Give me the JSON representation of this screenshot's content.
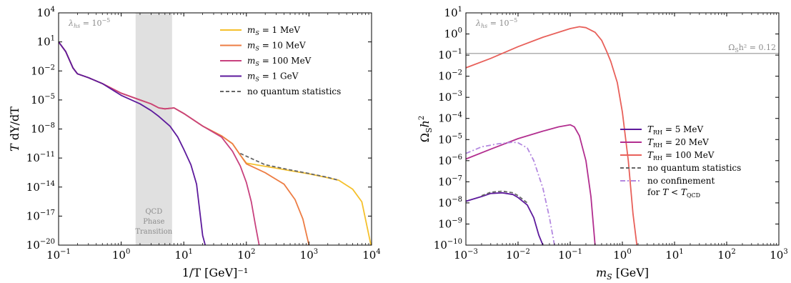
{
  "chart_data": [
    {
      "type": "line",
      "xscale": "log",
      "yscale": "log",
      "xlim": [
        0.1,
        10000
      ],
      "ylim": [
        1e-20,
        10000
      ],
      "xticks": [
        {
          "v": 0.1,
          "base": "10",
          "exp": "−1"
        },
        {
          "v": 1,
          "base": "10",
          "exp": "0"
        },
        {
          "v": 10,
          "base": "10",
          "exp": "1"
        },
        {
          "v": 100,
          "base": "10",
          "exp": "2"
        },
        {
          "v": 1000,
          "base": "10",
          "exp": "3"
        },
        {
          "v": 10000,
          "base": "10",
          "exp": "4"
        }
      ],
      "yticks": [
        {
          "v": 1e-20,
          "base": "10",
          "exp": "−20"
        },
        {
          "v": 1e-17,
          "base": "10",
          "exp": "−17"
        },
        {
          "v": 1e-14,
          "base": "10",
          "exp": "−14"
        },
        {
          "v": 1e-11,
          "base": "10",
          "exp": "−11"
        },
        {
          "v": 1e-08,
          "base": "10",
          "exp": "−8"
        },
        {
          "v": 1e-05,
          "base": "10",
          "exp": "−5"
        },
        {
          "v": 0.01,
          "base": "10",
          "exp": "−2"
        },
        {
          "v": 10,
          "base": "10",
          "exp": "1"
        },
        {
          "v": 10000,
          "base": "10",
          "exp": "4"
        }
      ],
      "xlabel": "1/T [GeV]⁻¹",
      "ylabel": "T dY/dT",
      "annotation": "λhs = 10⁻⁵",
      "band": {
        "x0": 1.7,
        "x1": 6.5,
        "lines": [
          "QCD",
          "Phase",
          "Transition"
        ]
      },
      "legend": "top-right",
      "series": [
        {
          "name": "mS = 1 MeV",
          "color": "#f5c02c",
          "dash": "",
          "points": [
            [
              0.1,
              10
            ],
            [
              0.13,
              1
            ],
            [
              0.17,
              0.02
            ],
            [
              0.2,
              0.005
            ],
            [
              0.3,
              0.002
            ],
            [
              0.5,
              0.0005
            ],
            [
              1,
              5e-05
            ],
            [
              2,
              1e-05
            ],
            [
              3,
              4e-06
            ],
            [
              4,
              1.5e-06
            ],
            [
              5,
              1.2e-06
            ],
            [
              7,
              1.5e-06
            ],
            [
              10,
              4e-07
            ],
            [
              20,
              2e-08
            ],
            [
              40,
              2e-09
            ],
            [
              60,
              3e-10
            ],
            [
              80,
              2e-11
            ],
            [
              100,
              3e-12
            ],
            [
              200,
              1.4e-12
            ],
            [
              500,
              5e-13
            ],
            [
              1000,
              2.3e-13
            ],
            [
              2000,
              9e-14
            ],
            [
              3000,
              5e-14
            ],
            [
              5000,
              6e-15
            ],
            [
              7000,
              3e-16
            ],
            [
              10000,
              5e-21
            ]
          ]
        },
        {
          "name": "mS = 10 MeV",
          "color": "#ed7d44",
          "dash": "",
          "points": [
            [
              0.1,
              10
            ],
            [
              0.13,
              1
            ],
            [
              0.17,
              0.02
            ],
            [
              0.2,
              0.005
            ],
            [
              0.3,
              0.002
            ],
            [
              0.5,
              0.0005
            ],
            [
              1,
              5e-05
            ],
            [
              2,
              1e-05
            ],
            [
              3,
              4e-06
            ],
            [
              4,
              1.5e-06
            ],
            [
              5,
              1.2e-06
            ],
            [
              7,
              1.5e-06
            ],
            [
              10,
              4e-07
            ],
            [
              20,
              2e-08
            ],
            [
              40,
              2e-09
            ],
            [
              60,
              3e-10
            ],
            [
              80,
              2e-11
            ],
            [
              100,
              2.5e-12
            ],
            [
              200,
              3e-13
            ],
            [
              400,
              2e-14
            ],
            [
              600,
              5e-16
            ],
            [
              800,
              5e-18
            ],
            [
              1000,
              1e-20
            ]
          ]
        },
        {
          "name": "mS = 100 MeV",
          "color": "#c8417e",
          "dash": "",
          "points": [
            [
              0.1,
              10
            ],
            [
              0.13,
              1
            ],
            [
              0.17,
              0.02
            ],
            [
              0.2,
              0.005
            ],
            [
              0.3,
              0.002
            ],
            [
              0.5,
              0.0005
            ],
            [
              1,
              5e-05
            ],
            [
              2,
              1e-05
            ],
            [
              3,
              4e-06
            ],
            [
              4,
              1.5e-06
            ],
            [
              5,
              1.2e-06
            ],
            [
              7,
              1.5e-06
            ],
            [
              10,
              4e-07
            ],
            [
              20,
              2e-08
            ],
            [
              40,
              1.5e-09
            ],
            [
              60,
              5e-11
            ],
            [
              80,
              1.5e-12
            ],
            [
              100,
              3e-14
            ],
            [
              120,
              3e-16
            ],
            [
              140,
              1e-18
            ],
            [
              160,
              1e-20
            ]
          ]
        },
        {
          "name": "mS = 1 GeV",
          "color": "#5d1a9c",
          "dash": "",
          "points": [
            [
              0.1,
              10
            ],
            [
              0.13,
              1
            ],
            [
              0.17,
              0.02
            ],
            [
              0.2,
              0.005
            ],
            [
              0.3,
              0.002
            ],
            [
              0.5,
              0.0005
            ],
            [
              1,
              3e-05
            ],
            [
              2,
              4e-06
            ],
            [
              3,
              8e-07
            ],
            [
              4,
              2e-07
            ],
            [
              6,
              2e-08
            ],
            [
              8,
              1.5e-09
            ],
            [
              10,
              8e-11
            ],
            [
              13,
              2e-12
            ],
            [
              16,
              2e-14
            ],
            [
              20,
              1e-19
            ],
            [
              22,
              1e-20
            ]
          ]
        },
        {
          "name": "no quantum statistics",
          "color": "#666666",
          "dash": "5,3",
          "points": [
            [
              80,
              3e-11
            ],
            [
              200,
              2e-12
            ],
            [
              500,
              6e-13
            ],
            [
              1000,
              2.5e-13
            ],
            [
              2000,
              1e-13
            ],
            [
              3000,
              5e-14
            ]
          ]
        }
      ]
    },
    {
      "type": "line",
      "xscale": "log",
      "yscale": "log",
      "xlim": [
        0.001,
        1000
      ],
      "ylim": [
        1e-10,
        10
      ],
      "xticks": [
        {
          "v": 0.001,
          "base": "10",
          "exp": "−3"
        },
        {
          "v": 0.01,
          "base": "10",
          "exp": "−2"
        },
        {
          "v": 0.1,
          "base": "10",
          "exp": "−1"
        },
        {
          "v": 1,
          "base": "10",
          "exp": "0"
        },
        {
          "v": 10,
          "base": "10",
          "exp": "1"
        },
        {
          "v": 100,
          "base": "10",
          "exp": "2"
        },
        {
          "v": 1000,
          "base": "10",
          "exp": "3"
        }
      ],
      "yticks": [
        {
          "v": 1e-10,
          "base": "10",
          "exp": "−10"
        },
        {
          "v": 1e-09,
          "base": "10",
          "exp": "−9"
        },
        {
          "v": 1e-08,
          "base": "10",
          "exp": "−8"
        },
        {
          "v": 1e-07,
          "base": "10",
          "exp": "−7"
        },
        {
          "v": 1e-06,
          "base": "10",
          "exp": "−6"
        },
        {
          "v": 1e-05,
          "base": "10",
          "exp": "−5"
        },
        {
          "v": 0.0001,
          "base": "10",
          "exp": "−4"
        },
        {
          "v": 0.001,
          "base": "10",
          "exp": "−3"
        },
        {
          "v": 0.01,
          "base": "10",
          "exp": "−2"
        },
        {
          "v": 0.1,
          "base": "10",
          "exp": "−1"
        },
        {
          "v": 1,
          "base": "10",
          "exp": "0"
        },
        {
          "v": 10,
          "base": "10",
          "exp": "1"
        }
      ],
      "xlabel": "mS [GeV]",
      "ylabel": "ΩS h²",
      "annotation": "λhs = 10⁻⁵",
      "hline": {
        "y": 0.12,
        "label": "ΩS h² = 0.12"
      },
      "legend": "center-right",
      "legend_note": "for T < TQCD",
      "series": [
        {
          "name": "TRH = 5 MeV",
          "color": "#5d1a9c",
          "dash": "",
          "points": [
            [
              0.001,
              1.2e-08
            ],
            [
              0.002,
              2e-08
            ],
            [
              0.003,
              2.8e-08
            ],
            [
              0.005,
              3e-08
            ],
            [
              0.008,
              2.5e-08
            ],
            [
              0.01,
              1.8e-08
            ],
            [
              0.015,
              8e-09
            ],
            [
              0.02,
              2e-09
            ],
            [
              0.025,
              3e-10
            ],
            [
              0.03,
              1e-10
            ]
          ]
        },
        {
          "name": "TRH = 20 MeV",
          "color": "#b22e8f",
          "dash": "",
          "points": [
            [
              0.001,
              1.2e-06
            ],
            [
              0.003,
              3.5e-06
            ],
            [
              0.01,
              1.1e-05
            ],
            [
              0.03,
              2.5e-05
            ],
            [
              0.06,
              4e-05
            ],
            [
              0.1,
              5e-05
            ],
            [
              0.12,
              4e-05
            ],
            [
              0.15,
              1.5e-05
            ],
            [
              0.2,
              1e-06
            ],
            [
              0.25,
              2e-08
            ],
            [
              0.3,
              1e-10
            ]
          ]
        },
        {
          "name": "TRH = 100 MeV",
          "color": "#e8605a",
          "dash": "",
          "points": [
            [
              0.001,
              0.025
            ],
            [
              0.003,
              0.07
            ],
            [
              0.01,
              0.25
            ],
            [
              0.03,
              0.7
            ],
            [
              0.1,
              1.8
            ],
            [
              0.15,
              2.2
            ],
            [
              0.2,
              2
            ],
            [
              0.3,
              1.2
            ],
            [
              0.4,
              0.5
            ],
            [
              0.5,
              0.15
            ],
            [
              0.6,
              0.05
            ],
            [
              0.8,
              0.005
            ],
            [
              1,
              0.0002
            ],
            [
              1.3,
              1e-06
            ],
            [
              1.6,
              3e-09
            ],
            [
              1.9,
              1e-10
            ]
          ]
        },
        {
          "name": "no quantum statistics",
          "color": "#666666",
          "dash": "5,3",
          "points": [
            [
              0.002,
              2.2e-08
            ],
            [
              0.003,
              3.2e-08
            ],
            [
              0.005,
              3.6e-08
            ],
            [
              0.008,
              3e-08
            ],
            [
              0.01,
              2.2e-08
            ],
            [
              0.015,
              1e-08
            ]
          ]
        },
        {
          "name": "no confinement",
          "color": "#b388e0",
          "dash": "7,3,2,3",
          "points": [
            [
              0.001,
              2.2e-06
            ],
            [
              0.002,
              4.5e-06
            ],
            [
              0.004,
              6.2e-06
            ],
            [
              0.008,
              7.5e-06
            ],
            [
              0.01,
              7e-06
            ],
            [
              0.015,
              4e-06
            ],
            [
              0.02,
              1e-06
            ],
            [
              0.03,
              5e-08
            ],
            [
              0.04,
              2e-09
            ],
            [
              0.05,
              1e-10
            ]
          ]
        }
      ]
    }
  ]
}
